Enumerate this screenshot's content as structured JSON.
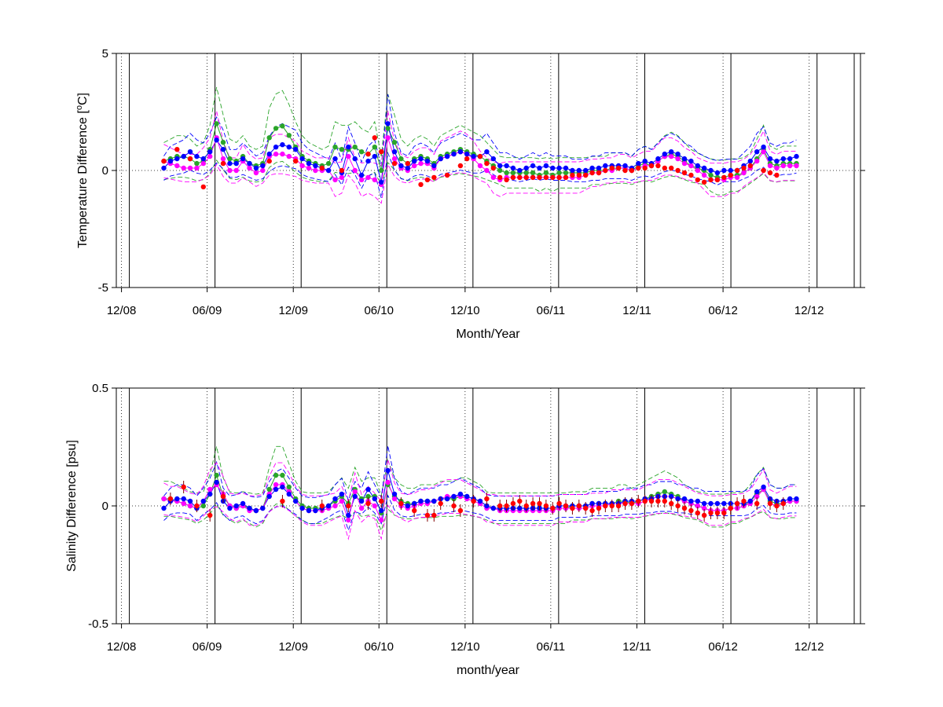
{
  "chart_data": [
    {
      "type": "scatter",
      "xlabel": "Month/Year",
      "ylabel_main": "Temperature Difference [",
      "ylabel_sup": "o",
      "ylabel_tail": "C]",
      "ylim": [
        -5,
        5
      ],
      "yticks": [
        5,
        0,
        -5
      ],
      "ytick_labels": [
        "5",
        "0",
        "-5"
      ],
      "xlim": [
        "2008-11-20",
        "2013-03-20"
      ],
      "xticks": [
        "2008-12-01",
        "2009-06-01",
        "2009-12-01",
        "2010-06-01",
        "2010-12-01",
        "2011-06-01",
        "2011-12-01",
        "2012-06-01",
        "2012-12-01"
      ],
      "xtick_labels": [
        "12/08",
        "06/09",
        "12/09",
        "06/10",
        "12/10",
        "06/11",
        "12/11",
        "06/12",
        "12/12"
      ],
      "grid": "vertical dotted at ticks, horizontal dotted at 0",
      "series_colors": {
        "blue": "#0000ff",
        "green": "#2aa52a",
        "magenta": "#ff00ff",
        "red": "#ff0000"
      },
      "blue_values": [
        0.1,
        0.4,
        0.5,
        0.6,
        0.8,
        0.6,
        0.5,
        0.8,
        1.3,
        0.9,
        0.3,
        0.3,
        0.5,
        0.3,
        0.1,
        0.2,
        0.7,
        1.0,
        1.1,
        1.0,
        0.9,
        0.5,
        0.3,
        0.2,
        0.1,
        0.0,
        0.5,
        -0.1,
        1.0,
        0.5,
        -0.2,
        0.4,
        0.6,
        -0.5,
        2.0,
        0.8,
        0.2,
        0.1,
        0.4,
        0.5,
        0.4,
        0.2,
        0.5,
        0.6,
        0.7,
        0.8,
        0.7,
        0.6,
        0.6,
        0.8,
        0.5,
        0.2,
        0.2,
        0.1,
        0.0,
        0.1,
        0.2,
        0.1,
        0.2,
        0.1,
        0.1,
        0.1,
        0.0,
        0.0,
        0.0,
        0.1,
        0.1,
        0.2,
        0.2,
        0.2,
        0.2,
        0.1,
        0.3,
        0.4,
        0.3,
        0.5,
        0.7,
        0.8,
        0.7,
        0.5,
        0.4,
        0.2,
        0.1,
        0.0,
        -0.1,
        0.0,
        0.0,
        0.0,
        0.2,
        0.4,
        0.8,
        1.0,
        0.5,
        0.4,
        0.5,
        0.5,
        0.6
      ],
      "green_values": [
        0.4,
        0.5,
        0.6,
        0.6,
        0.5,
        0.3,
        0.4,
        0.9,
        2.0,
        1.2,
        0.5,
        0.4,
        0.6,
        0.3,
        0.2,
        0.3,
        1.4,
        1.8,
        1.9,
        1.5,
        1.0,
        0.6,
        0.4,
        0.3,
        0.2,
        0.3,
        1.0,
        0.9,
        0.9,
        1.0,
        0.8,
        0.7,
        1.0,
        0.0,
        1.8,
        1.2,
        0.5,
        0.3,
        0.5,
        0.6,
        0.5,
        0.3,
        0.6,
        0.7,
        0.8,
        0.9,
        0.8,
        0.7,
        0.6,
        0.4,
        0.2,
        0.0,
        -0.1,
        -0.1,
        -0.1,
        -0.1,
        -0.1,
        -0.2,
        -0.1,
        -0.2,
        -0.1,
        -0.1,
        -0.1,
        -0.1,
        -0.1,
        0.0,
        0.0,
        0.0,
        0.1,
        0.1,
        0.1,
        0.0,
        0.2,
        0.3,
        0.2,
        0.4,
        0.6,
        0.7,
        0.6,
        0.4,
        0.2,
        0.1,
        0.0,
        -0.2,
        -0.3,
        -0.3,
        -0.2,
        -0.2,
        -0.1,
        0.1,
        0.5,
        0.9,
        0.3,
        0.2,
        0.3,
        0.3,
        0.3
      ],
      "magenta_values": [
        0.4,
        0.3,
        0.2,
        0.1,
        0.1,
        0.1,
        0.3,
        0.6,
        1.4,
        0.5,
        0.0,
        0.0,
        0.4,
        0.1,
        -0.1,
        0.0,
        0.6,
        0.7,
        0.7,
        0.6,
        0.5,
        0.2,
        0.1,
        0.0,
        0.0,
        0.0,
        -0.4,
        -0.3,
        0.6,
        0.0,
        -0.4,
        -0.3,
        -0.4,
        -0.6,
        1.4,
        0.5,
        0.1,
        0.0,
        0.2,
        0.3,
        0.3,
        0.1,
        0.5,
        0.6,
        0.7,
        0.8,
        0.7,
        0.5,
        0.2,
        0.0,
        -0.3,
        -0.4,
        -0.3,
        -0.3,
        -0.3,
        -0.3,
        -0.3,
        -0.3,
        -0.3,
        -0.3,
        -0.3,
        -0.3,
        -0.3,
        -0.3,
        -0.2,
        -0.1,
        -0.1,
        0.0,
        0.0,
        0.1,
        0.1,
        0.0,
        0.1,
        0.2,
        0.2,
        0.4,
        0.6,
        0.6,
        0.5,
        0.3,
        0.2,
        0.0,
        -0.2,
        -0.4,
        -0.4,
        -0.4,
        -0.3,
        -0.3,
        -0.1,
        0.1,
        0.4,
        0.8,
        0.2,
        0.1,
        0.2,
        0.2,
        0.2
      ],
      "red_points": [
        [
          0,
          0.4
        ],
        [
          2,
          0.9
        ],
        [
          4,
          0.5
        ],
        [
          6,
          -0.7
        ],
        [
          9,
          0.3
        ],
        [
          16,
          0.4
        ],
        [
          20,
          0.4
        ],
        [
          24,
          0.1
        ],
        [
          27,
          0.0
        ],
        [
          31,
          0.7
        ],
        [
          32,
          1.4
        ],
        [
          33,
          0.8
        ],
        [
          35,
          0.3
        ],
        [
          37,
          0.3
        ],
        [
          39,
          -0.6
        ],
        [
          40,
          -0.4
        ],
        [
          41,
          -0.3
        ],
        [
          43,
          -0.2
        ],
        [
          45,
          0.2
        ],
        [
          46,
          0.5
        ],
        [
          48,
          0.6
        ],
        [
          49,
          0.3
        ],
        [
          50,
          0.1
        ],
        [
          51,
          -0.3
        ],
        [
          52,
          -0.4
        ],
        [
          53,
          -0.3
        ],
        [
          54,
          -0.3
        ],
        [
          55,
          -0.3
        ],
        [
          56,
          -0.3
        ],
        [
          57,
          -0.3
        ],
        [
          58,
          -0.3
        ],
        [
          59,
          -0.3
        ],
        [
          60,
          -0.3
        ],
        [
          61,
          -0.3
        ],
        [
          62,
          -0.2
        ],
        [
          63,
          -0.2
        ],
        [
          64,
          -0.2
        ],
        [
          65,
          -0.1
        ],
        [
          66,
          -0.1
        ],
        [
          67,
          0.0
        ],
        [
          68,
          0.1
        ],
        [
          69,
          0.1
        ],
        [
          70,
          0.0
        ],
        [
          71,
          0.0
        ],
        [
          72,
          0.1
        ],
        [
          73,
          0.1
        ],
        [
          74,
          0.2
        ],
        [
          75,
          0.2
        ],
        [
          76,
          0.1
        ],
        [
          77,
          0.1
        ],
        [
          78,
          0.0
        ],
        [
          79,
          -0.1
        ],
        [
          80,
          -0.2
        ],
        [
          81,
          -0.4
        ],
        [
          82,
          -0.5
        ],
        [
          83,
          -0.4
        ],
        [
          84,
          -0.4
        ],
        [
          85,
          -0.3
        ],
        [
          86,
          -0.2
        ],
        [
          87,
          0.0
        ],
        [
          88,
          0.1
        ],
        [
          89,
          0.2
        ],
        [
          91,
          0.0
        ],
        [
          92,
          -0.1
        ],
        [
          93,
          -0.2
        ]
      ]
    },
    {
      "type": "scatter",
      "xlabel": "month/year",
      "ylabel": "Salinity Difference [psu]",
      "ylim": [
        -0.5,
        0.5
      ],
      "yticks": [
        0.5,
        0,
        -0.5
      ],
      "ytick_labels": [
        "0.5",
        "0",
        "-0.5"
      ],
      "xlim": [
        "2008-11-20",
        "2013-03-20"
      ],
      "xticks": [
        "2008-12-01",
        "2009-06-01",
        "2009-12-01",
        "2010-06-01",
        "2010-12-01",
        "2011-06-01",
        "2011-12-01",
        "2012-06-01",
        "2012-12-01"
      ],
      "xtick_labels": [
        "12/08",
        "06/09",
        "12/09",
        "06/10",
        "12/10",
        "06/11",
        "12/11",
        "06/12",
        "12/12"
      ],
      "grid": "vertical dotted at ticks, horizontal dotted at 0",
      "series_colors": {
        "blue": "#0000ff",
        "green": "#2aa52a",
        "magenta": "#ff00ff",
        "red": "#ff0000"
      },
      "blue_values": [
        -0.01,
        0.02,
        0.03,
        0.03,
        0.02,
        -0.01,
        0.02,
        0.05,
        0.1,
        0.02,
        -0.01,
        0.0,
        0.01,
        -0.01,
        -0.02,
        -0.01,
        0.04,
        0.07,
        0.08,
        0.05,
        0.02,
        -0.01,
        -0.02,
        -0.02,
        -0.01,
        0.0,
        0.03,
        0.05,
        -0.04,
        0.04,
        0.02,
        0.07,
        0.03,
        -0.02,
        0.15,
        0.05,
        0.01,
        0.0,
        0.01,
        0.02,
        0.02,
        0.02,
        0.03,
        0.03,
        0.04,
        0.05,
        0.04,
        0.03,
        0.02,
        0.0,
        -0.01,
        -0.01,
        -0.01,
        -0.01,
        -0.01,
        -0.01,
        -0.01,
        -0.01,
        -0.01,
        -0.01,
        0.0,
        0.0,
        0.0,
        0.0,
        0.0,
        0.01,
        0.01,
        0.01,
        0.01,
        0.01,
        0.02,
        0.02,
        0.02,
        0.03,
        0.03,
        0.04,
        0.04,
        0.04,
        0.03,
        0.03,
        0.02,
        0.02,
        0.01,
        0.01,
        0.01,
        0.01,
        0.01,
        0.01,
        0.01,
        0.02,
        0.06,
        0.08,
        0.03,
        0.02,
        0.02,
        0.03,
        0.03
      ],
      "green_values": [
        0.03,
        0.03,
        0.02,
        0.01,
        0.0,
        -0.01,
        0.0,
        0.05,
        0.13,
        0.04,
        0.0,
        -0.01,
        0.0,
        -0.01,
        -0.02,
        -0.01,
        0.07,
        0.13,
        0.13,
        0.08,
        0.03,
        0.0,
        -0.01,
        -0.01,
        -0.01,
        0.0,
        0.02,
        0.04,
        0.01,
        0.07,
        0.03,
        0.04,
        0.04,
        -0.03,
        0.09,
        0.04,
        0.02,
        0.01,
        0.01,
        0.02,
        0.02,
        0.02,
        0.03,
        0.03,
        0.03,
        0.04,
        0.04,
        0.03,
        0.02,
        0.0,
        -0.01,
        -0.01,
        -0.01,
        -0.01,
        -0.01,
        -0.01,
        -0.01,
        -0.01,
        -0.01,
        -0.01,
        -0.01,
        -0.01,
        0.0,
        0.0,
        0.0,
        0.01,
        0.01,
        0.01,
        0.01,
        0.02,
        0.02,
        0.01,
        0.02,
        0.03,
        0.04,
        0.05,
        0.06,
        0.05,
        0.04,
        0.02,
        0.01,
        0.0,
        -0.01,
        -0.02,
        -0.02,
        -0.02,
        -0.01,
        -0.01,
        0.0,
        0.02,
        0.05,
        0.07,
        0.02,
        0.01,
        0.01,
        0.02,
        0.02
      ],
      "magenta_values": [
        0.03,
        0.02,
        0.02,
        0.01,
        0.0,
        -0.01,
        0.02,
        0.07,
        0.09,
        0.05,
        0.0,
        -0.01,
        0.0,
        -0.02,
        -0.02,
        -0.01,
        0.05,
        0.09,
        0.09,
        0.06,
        0.02,
        -0.01,
        -0.02,
        -0.02,
        -0.02,
        -0.01,
        0.0,
        0.02,
        -0.06,
        0.06,
        -0.01,
        0.02,
        0.0,
        -0.06,
        0.1,
        0.03,
        0.0,
        -0.01,
        0.0,
        0.01,
        0.01,
        0.02,
        0.03,
        0.04,
        0.04,
        0.04,
        0.03,
        0.02,
        0.01,
        -0.01,
        -0.01,
        -0.02,
        -0.02,
        -0.02,
        -0.02,
        -0.02,
        -0.02,
        -0.02,
        -0.02,
        -0.02,
        -0.01,
        -0.01,
        -0.01,
        -0.01,
        -0.01,
        0.0,
        0.0,
        0.0,
        0.01,
        0.01,
        0.01,
        0.01,
        0.01,
        0.02,
        0.03,
        0.04,
        0.04,
        0.04,
        0.03,
        0.02,
        0.01,
        0.0,
        -0.01,
        -0.02,
        -0.02,
        -0.02,
        -0.01,
        -0.01,
        0.0,
        0.01,
        0.04,
        0.07,
        0.01,
        0.0,
        0.01,
        0.02,
        0.02
      ],
      "red_points": [
        [
          1,
          0.03
        ],
        [
          3,
          0.08
        ],
        [
          5,
          0.0
        ],
        [
          7,
          -0.04
        ],
        [
          9,
          0.04
        ],
        [
          18,
          0.02
        ],
        [
          24,
          0.0
        ],
        [
          28,
          0.0
        ],
        [
          31,
          0.01
        ],
        [
          33,
          0.02
        ],
        [
          36,
          0.01
        ],
        [
          38,
          -0.02
        ],
        [
          40,
          -0.04
        ],
        [
          41,
          -0.04
        ],
        [
          42,
          0.01
        ],
        [
          44,
          0.0
        ],
        [
          45,
          -0.02
        ],
        [
          47,
          0.02
        ],
        [
          49,
          0.03
        ],
        [
          51,
          0.0
        ],
        [
          52,
          0.0
        ],
        [
          53,
          0.01
        ],
        [
          54,
          0.02
        ],
        [
          55,
          0.0
        ],
        [
          56,
          0.01
        ],
        [
          57,
          0.01
        ],
        [
          58,
          0.0
        ],
        [
          59,
          -0.01
        ],
        [
          60,
          0.01
        ],
        [
          61,
          0.0
        ],
        [
          62,
          -0.01
        ],
        [
          63,
          0.0
        ],
        [
          64,
          -0.01
        ],
        [
          65,
          -0.02
        ],
        [
          66,
          -0.01
        ],
        [
          67,
          0.0
        ],
        [
          68,
          0.0
        ],
        [
          69,
          0.0
        ],
        [
          70,
          0.01
        ],
        [
          71,
          0.01
        ],
        [
          72,
          0.02
        ],
        [
          73,
          0.02
        ],
        [
          74,
          0.02
        ],
        [
          75,
          0.02
        ],
        [
          76,
          0.02
        ],
        [
          77,
          0.01
        ],
        [
          78,
          0.0
        ],
        [
          79,
          -0.01
        ],
        [
          80,
          -0.02
        ],
        [
          81,
          -0.03
        ],
        [
          82,
          -0.04
        ],
        [
          83,
          -0.03
        ],
        [
          84,
          -0.03
        ],
        [
          85,
          -0.03
        ],
        [
          86,
          -0.01
        ],
        [
          87,
          0.01
        ],
        [
          88,
          0.02
        ],
        [
          90,
          0.01
        ],
        [
          92,
          0.01
        ],
        [
          93,
          0.0
        ],
        [
          94,
          0.01
        ]
      ]
    }
  ]
}
